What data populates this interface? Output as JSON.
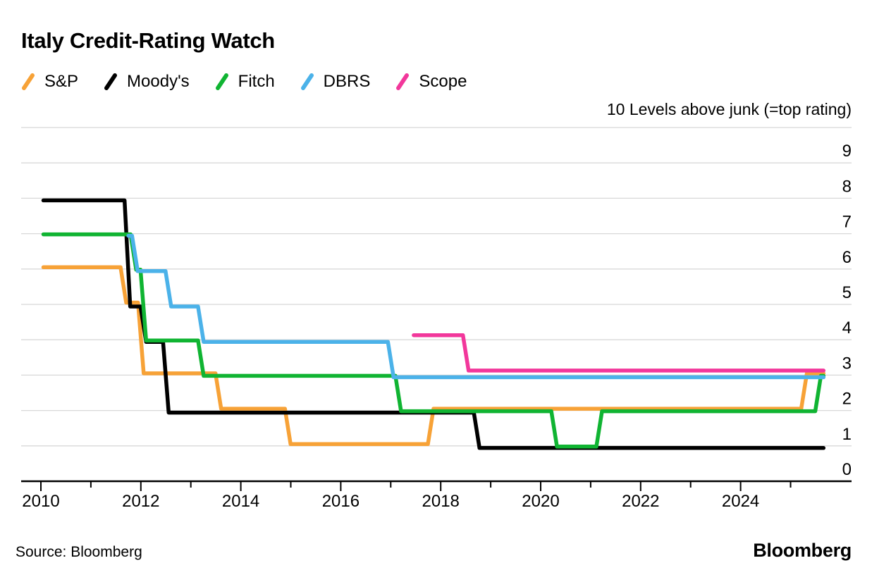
{
  "source": "Source: Bloomberg",
  "brand": "Bloomberg",
  "chart_data": {
    "type": "line",
    "step_style": "step-after",
    "title": "Italy Credit-Rating Watch",
    "axis_note": "10 Levels above junk (=top rating)",
    "ylabel": "Levels above junk",
    "ylim": [
      0,
      10
    ],
    "ytick_labels": [
      9,
      8,
      7,
      6,
      5,
      4,
      3,
      2,
      1,
      0
    ],
    "xtick_years_labeled": [
      2010,
      2012,
      2014,
      2016,
      2018,
      2020,
      2022,
      2024
    ],
    "xtick_years_minor": [
      2011,
      2013,
      2015,
      2017,
      2019,
      2021,
      2023,
      2025
    ],
    "x_start": 2010.05,
    "x_end": 2025.66,
    "grid": "horizontal",
    "legend_position": "top-left",
    "gridline_color": "#D8D8D8",
    "series": [
      {
        "name": "S&P",
        "color": "#F7A237",
        "points": [
          [
            2010.05,
            6
          ],
          [
            2011.65,
            5
          ],
          [
            2012.0,
            3
          ],
          [
            2013.55,
            2
          ],
          [
            2014.94,
            1
          ],
          [
            2017.8,
            2
          ],
          [
            2025.27,
            3
          ]
        ]
      },
      {
        "name": "Moody's",
        "color": "#000000",
        "points": [
          [
            2010.05,
            8
          ],
          [
            2011.73,
            5
          ],
          [
            2012.05,
            4
          ],
          [
            2012.5,
            2
          ],
          [
            2018.72,
            1
          ]
        ]
      },
      {
        "name": "Fitch",
        "color": "#10B432",
        "points": [
          [
            2010.05,
            7
          ],
          [
            2011.85,
            6
          ],
          [
            2012.05,
            4
          ],
          [
            2013.2,
            3
          ],
          [
            2017.15,
            2
          ],
          [
            2020.27,
            1
          ],
          [
            2021.17,
            2
          ],
          [
            2025.55,
            3
          ]
        ]
      },
      {
        "name": "DBRS",
        "color": "#4BB2E9",
        "points": [
          [
            2011.75,
            7
          ],
          [
            2011.88,
            6
          ],
          [
            2012.55,
            5
          ],
          [
            2013.2,
            4
          ],
          [
            2017.0,
            3
          ]
        ]
      },
      {
        "name": "Scope",
        "color": "#F2379B",
        "points": [
          [
            2017.46,
            4
          ],
          [
            2018.5,
            3
          ]
        ]
      }
    ]
  }
}
